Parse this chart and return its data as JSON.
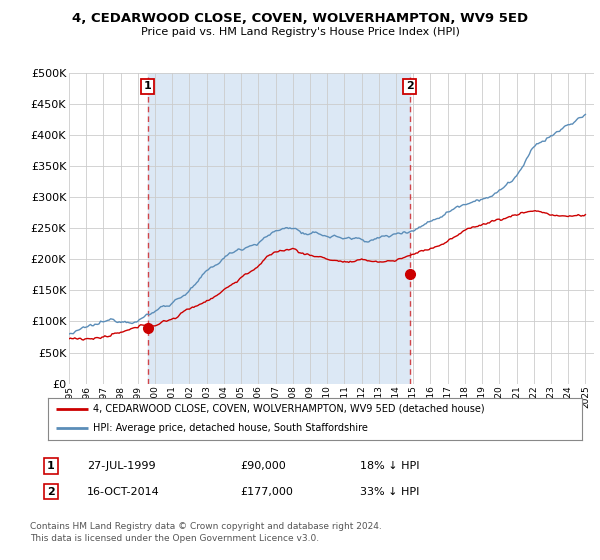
{
  "title": "4, CEDARWOOD CLOSE, COVEN, WOLVERHAMPTON, WV9 5ED",
  "subtitle": "Price paid vs. HM Land Registry's House Price Index (HPI)",
  "legend_line1": "4, CEDARWOOD CLOSE, COVEN, WOLVERHAMPTON, WV9 5ED (detached house)",
  "legend_line2": "HPI: Average price, detached house, South Staffordshire",
  "transaction1_date": "27-JUL-1999",
  "transaction1_price": "£90,000",
  "transaction1_hpi": "18% ↓ HPI",
  "transaction1_x": 1999.58,
  "transaction1_y": 90000,
  "transaction2_date": "16-OCT-2014",
  "transaction2_price": "£177,000",
  "transaction2_hpi": "33% ↓ HPI",
  "transaction2_x": 2014.79,
  "transaction2_y": 177000,
  "footnote": "Contains HM Land Registry data © Crown copyright and database right 2024.\nThis data is licensed under the Open Government Licence v3.0.",
  "ylim": [
    0,
    500000
  ],
  "yticks": [
    0,
    50000,
    100000,
    150000,
    200000,
    250000,
    300000,
    350000,
    400000,
    450000,
    500000
  ],
  "xlim_start": 1995.0,
  "xlim_end": 2025.5,
  "vline1_x": 1999.58,
  "vline2_x": 2014.79,
  "bg_color": "#ffffff",
  "grid_color": "#cccccc",
  "red_color": "#cc0000",
  "blue_color": "#5b8db8",
  "shade_color": "#dce8f5"
}
